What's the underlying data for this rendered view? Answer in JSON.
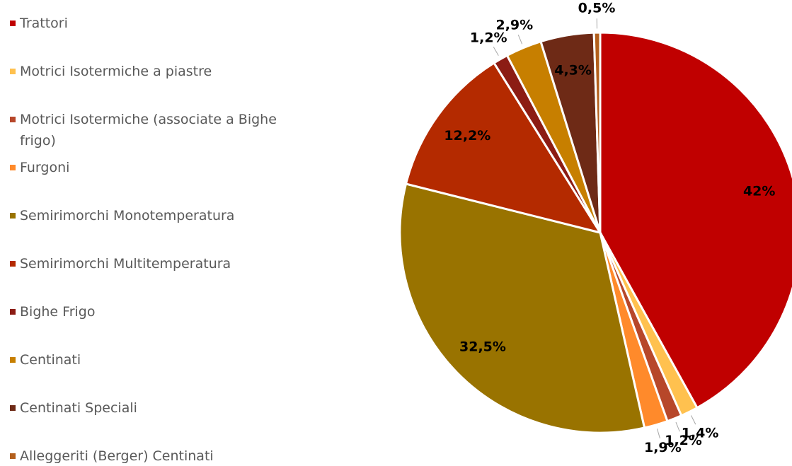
{
  "chart_data": {
    "type": "pie",
    "categories": [
      "Trattori",
      "Motrici Isotermiche a piastre",
      "Motrici Isotermiche (associate a Bighe frigo)",
      "Furgoni",
      "Semirimorchi Monotemperatura",
      "Semirimorchi Multitemperatura",
      "Bighe Frigo",
      "Centinati",
      "Centinati Speciali",
      "Alleggeriti (Berger) Centinati"
    ],
    "values": [
      42,
      1.4,
      1.2,
      1.9,
      32.5,
      12.2,
      1.2,
      2.9,
      4.3,
      0.5
    ],
    "value_labels": [
      "42%",
      "1,4%",
      "1,2%",
      "1,9%",
      "32,5%",
      "12,2%",
      "1,2%",
      "2,9%",
      "4,3%",
      "0,5%"
    ],
    "colors": [
      "#c00000",
      "#ffc14f",
      "#b7472a",
      "#ff8a2b",
      "#997300",
      "#b42a00",
      "#8c1c14",
      "#c77f00",
      "#6e2a16",
      "#b35f1c"
    ],
    "legend": "left"
  }
}
